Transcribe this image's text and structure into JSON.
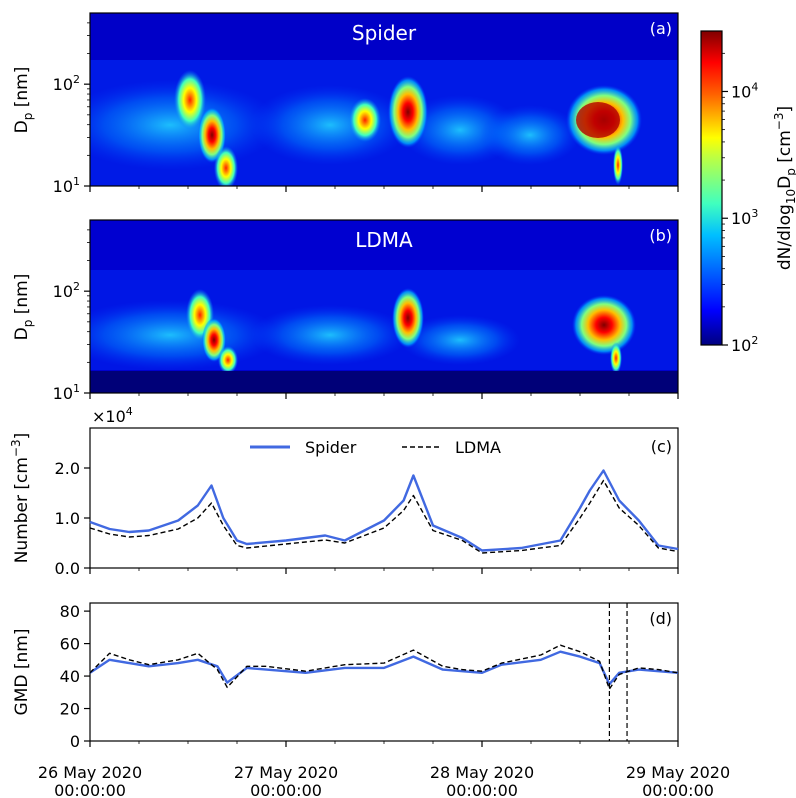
{
  "chart_data": [
    {
      "type": "heatmap",
      "panel_label": "(a)",
      "title": "Spider",
      "ylabel": "D",
      "ylabel_sub": "p",
      "ylabel_unit": " [nm]",
      "yscale": "log",
      "ylim": [
        10,
        500
      ],
      "yticks": [
        {
          "base": "10",
          "exp": "1"
        },
        {
          "base": "10",
          "exp": "2"
        }
      ],
      "xlim_days": [
        0,
        3
      ],
      "events": [
        {
          "day": 0.62,
          "dp": 35,
          "level": "high"
        },
        {
          "day": 1.62,
          "dp": 50,
          "level": "high"
        },
        {
          "day": 2.55,
          "dp": 45,
          "level": "very-high"
        }
      ]
    },
    {
      "type": "heatmap",
      "panel_label": "(b)",
      "title": "LDMA",
      "ylabel": "D",
      "ylabel_sub": "p",
      "ylabel_unit": " [nm]",
      "yscale": "log",
      "ylim": [
        10,
        500
      ],
      "yticks": [
        {
          "base": "10",
          "exp": "1"
        },
        {
          "base": "10",
          "exp": "2"
        }
      ],
      "lower_cutoff_nm": 16,
      "events": [
        {
          "day": 0.62,
          "dp": 35,
          "level": "high"
        },
        {
          "day": 1.62,
          "dp": 50,
          "level": "high"
        },
        {
          "day": 2.55,
          "dp": 45,
          "level": "high"
        }
      ]
    },
    {
      "type": "line",
      "panel_label": "(c)",
      "ylabel": "Number [cm",
      "ylabel_sup": "−3",
      "ylabel_close": "]",
      "offset_text": "×10",
      "offset_exp": "4",
      "ylim": [
        0,
        2.8
      ],
      "yticks": [
        "0.0",
        "1.0",
        "2.0"
      ],
      "series": [
        {
          "name": "Spider",
          "color": "#4169e1",
          "style": "solid",
          "x": [
            0,
            0.1,
            0.2,
            0.3,
            0.45,
            0.55,
            0.62,
            0.68,
            0.75,
            0.8,
            1.0,
            1.2,
            1.3,
            1.5,
            1.6,
            1.65,
            1.75,
            1.9,
            2.0,
            2.2,
            2.4,
            2.5,
            2.55,
            2.62,
            2.7,
            2.8,
            2.9,
            3.0
          ],
          "values": [
            0.92,
            0.78,
            0.72,
            0.75,
            0.95,
            1.25,
            1.65,
            1.0,
            0.55,
            0.48,
            0.55,
            0.65,
            0.55,
            0.95,
            1.35,
            1.85,
            0.85,
            0.6,
            0.35,
            0.4,
            0.55,
            1.2,
            1.55,
            1.95,
            1.35,
            0.95,
            0.45,
            0.38
          ]
        },
        {
          "name": "LDMA",
          "color": "#000000",
          "style": "dashed",
          "x": [
            0,
            0.1,
            0.2,
            0.3,
            0.45,
            0.55,
            0.62,
            0.68,
            0.75,
            0.8,
            1.0,
            1.2,
            1.3,
            1.5,
            1.6,
            1.65,
            1.75,
            1.9,
            2.0,
            2.2,
            2.4,
            2.5,
            2.55,
            2.62,
            2.7,
            2.8,
            2.9,
            3.0
          ],
          "values": [
            0.8,
            0.68,
            0.62,
            0.65,
            0.78,
            1.0,
            1.3,
            0.85,
            0.45,
            0.4,
            0.48,
            0.56,
            0.5,
            0.8,
            1.15,
            1.45,
            0.75,
            0.55,
            0.3,
            0.35,
            0.45,
            1.0,
            1.3,
            1.75,
            1.2,
            0.85,
            0.4,
            0.33
          ]
        }
      ],
      "legend": "top-center"
    },
    {
      "type": "line",
      "panel_label": "(d)",
      "ylabel": "GMD [nm]",
      "ylim": [
        0,
        85
      ],
      "yticks": [
        "0",
        "20",
        "40",
        "60",
        "80"
      ],
      "series": [
        {
          "name": "Spider",
          "color": "#4169e1",
          "style": "solid",
          "x": [
            0,
            0.1,
            0.2,
            0.3,
            0.45,
            0.55,
            0.65,
            0.7,
            0.8,
            0.9,
            1.1,
            1.3,
            1.5,
            1.65,
            1.8,
            1.9,
            2.0,
            2.1,
            2.3,
            2.4,
            2.5,
            2.6,
            2.65,
            2.7,
            2.8,
            2.9,
            3.0
          ],
          "values": [
            42,
            50,
            48,
            46,
            48,
            50,
            46,
            36,
            45,
            44,
            42,
            45,
            45,
            52,
            44,
            43,
            42,
            47,
            50,
            55,
            52,
            48,
            35,
            42,
            44,
            43,
            42
          ]
        },
        {
          "name": "LDMA",
          "color": "#000000",
          "style": "dashed",
          "x": [
            0,
            0.1,
            0.2,
            0.3,
            0.45,
            0.55,
            0.65,
            0.7,
            0.8,
            0.9,
            1.1,
            1.3,
            1.5,
            1.65,
            1.8,
            1.9,
            2.0,
            2.1,
            2.3,
            2.4,
            2.5,
            2.6,
            2.65,
            2.7,
            2.8,
            2.9,
            3.0
          ],
          "values": [
            42,
            54,
            50,
            47,
            50,
            54,
            44,
            33,
            46,
            46,
            43,
            47,
            48,
            56,
            46,
            44,
            43,
            48,
            53,
            59,
            55,
            49,
            32,
            41,
            45,
            44,
            42
          ]
        }
      ],
      "vlines_days": [
        2.65,
        2.74
      ]
    }
  ],
  "colorbar": {
    "label": "dN/dlog",
    "label_sub": "10",
    "label_mid": "D",
    "label_sub2": "p",
    "label_unit": " [cm",
    "label_sup": "−3",
    "label_close": "]",
    "scale": "log",
    "range": [
      100,
      30000
    ],
    "ticks": [
      {
        "base": "10",
        "exp": "4"
      },
      {
        "base": "10",
        "exp": "3"
      },
      {
        "base": "10",
        "exp": "2"
      }
    ],
    "colormap": [
      "#00008f",
      "#0000ff",
      "#0080ff",
      "#00ffff",
      "#80ff80",
      "#ffff00",
      "#ff8000",
      "#ff0000",
      "#800000"
    ]
  },
  "x_axis": {
    "ticks": [
      {
        "day": 0,
        "date": "26 May 2020",
        "time": "00:00:00"
      },
      {
        "day": 1,
        "date": "27 May 2020",
        "time": "00:00:00"
      },
      {
        "day": 2,
        "date": "28 May 2020",
        "time": "00:00:00"
      },
      {
        "day": 3,
        "date": "29 May 2020",
        "time": "00:00:00"
      }
    ]
  }
}
